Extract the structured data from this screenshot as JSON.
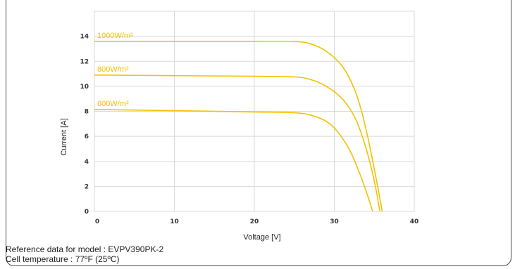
{
  "chart_data": {
    "type": "line",
    "xlabel": "Voltage [V]",
    "ylabel": "Current [A]",
    "xlim": [
      0,
      40
    ],
    "ylim": [
      0,
      16
    ],
    "x_ticks": [
      0,
      10,
      20,
      30,
      40
    ],
    "y_ticks": [
      0,
      2,
      4,
      6,
      8,
      10,
      12,
      14
    ],
    "grid": true,
    "line_color": "#F2C200",
    "grid_color": "#d9d9d9",
    "series": [
      {
        "name": "1000W/m²",
        "points": [
          [
            0,
            13.6
          ],
          [
            10,
            13.6
          ],
          [
            20,
            13.6
          ],
          [
            25,
            13.58
          ],
          [
            27,
            13.4
          ],
          [
            29,
            12.8
          ],
          [
            31,
            11.6
          ],
          [
            32.5,
            9.8
          ],
          [
            33.5,
            7.8
          ],
          [
            34.5,
            5.0
          ],
          [
            35.3,
            2.4
          ],
          [
            36.0,
            0
          ]
        ]
      },
      {
        "name": "800W/m²",
        "points": [
          [
            0,
            10.9
          ],
          [
            10,
            10.85
          ],
          [
            20,
            10.8
          ],
          [
            25,
            10.75
          ],
          [
            27,
            10.55
          ],
          [
            29,
            10.0
          ],
          [
            31,
            9.0
          ],
          [
            32.5,
            7.6
          ],
          [
            33.5,
            6.0
          ],
          [
            34.5,
            3.8
          ],
          [
            35.2,
            1.8
          ],
          [
            35.7,
            0
          ]
        ]
      },
      {
        "name": "600W/m²",
        "points": [
          [
            0,
            8.15
          ],
          [
            10,
            8.05
          ],
          [
            20,
            7.95
          ],
          [
            25,
            7.88
          ],
          [
            27,
            7.7
          ],
          [
            29,
            7.2
          ],
          [
            30.5,
            6.3
          ],
          [
            32,
            4.8
          ],
          [
            33.2,
            3.0
          ],
          [
            34.2,
            1.2
          ],
          [
            34.8,
            0
          ]
        ]
      }
    ],
    "annotations": [
      "1000W/m²",
      "800W/m²",
      "600W/m²"
    ]
  },
  "footer": {
    "model_line": "Reference data for model : EVPV390PK-2",
    "temperature_line": "Cell temperature : 77ºF (25ºC)"
  }
}
